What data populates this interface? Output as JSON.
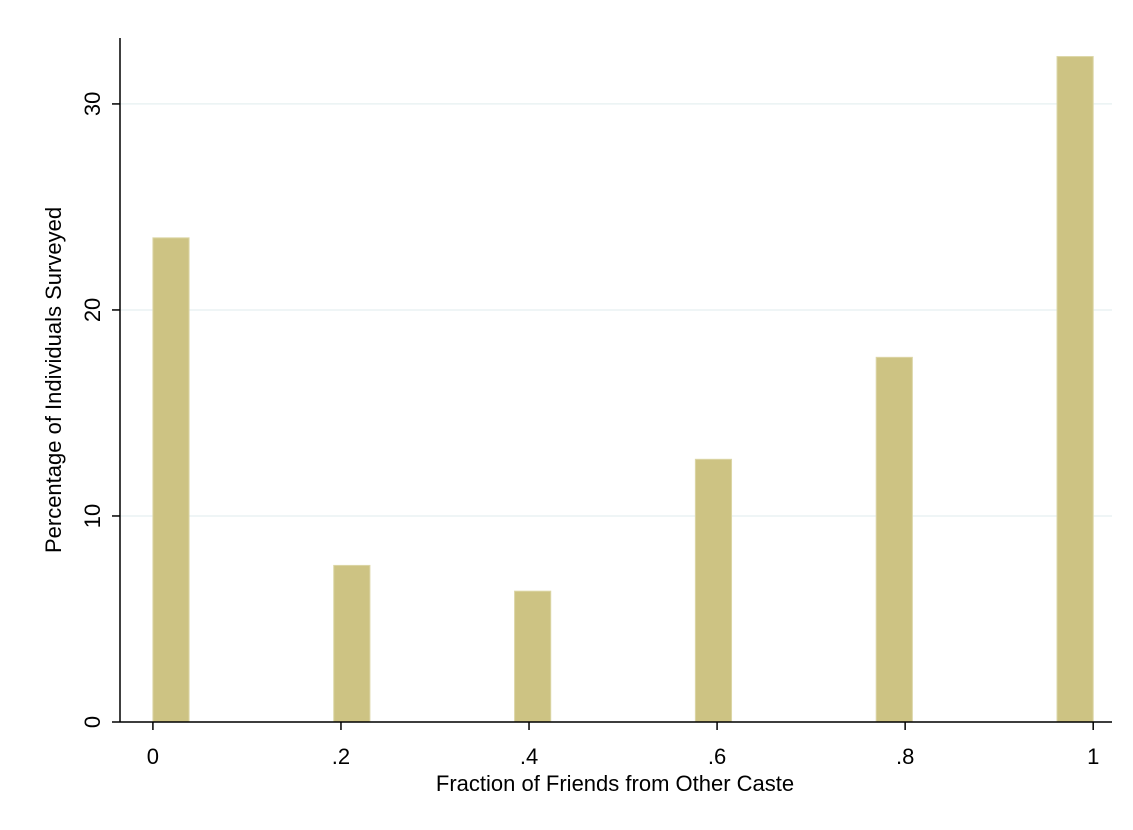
{
  "chart_data": {
    "type": "histogram",
    "x_label": "Fraction of Friends from Other Caste",
    "y_label": "Percentage of Individuals Surveyed",
    "bins": [
      0,
      0.03846,
      0.07692,
      0.11538,
      0.15385,
      0.19231,
      0.23077,
      0.26923,
      0.30769,
      0.34615,
      0.38462,
      0.42308,
      0.46154,
      0.5,
      0.53846,
      0.57692,
      0.61538,
      0.65385,
      0.69231,
      0.73077,
      0.76923,
      0.80769,
      0.84615,
      0.88462,
      0.92308,
      0.96154,
      1
    ],
    "values": [
      23.5,
      0,
      0,
      0,
      0,
      7.6,
      0,
      0,
      0,
      0,
      6.35,
      0,
      0,
      0,
      0,
      12.75,
      0,
      0,
      0,
      0,
      17.7,
      0,
      0,
      0,
      0,
      32.3
    ],
    "color": "#cdc383",
    "xlim": [
      -0.035,
      1.02
    ],
    "xticks": [
      0,
      {
        "value": 0.2,
        "label": ".2"
      },
      {
        "value": 0.4,
        "label": ".4"
      },
      {
        "value": 0.6,
        "label": ".6"
      },
      {
        "value": 0.8,
        "label": ".8"
      },
      1
    ],
    "ylim": [
      0,
      33.2
    ],
    "yticks": [
      0,
      10,
      20,
      30
    ],
    "grid": true
  }
}
